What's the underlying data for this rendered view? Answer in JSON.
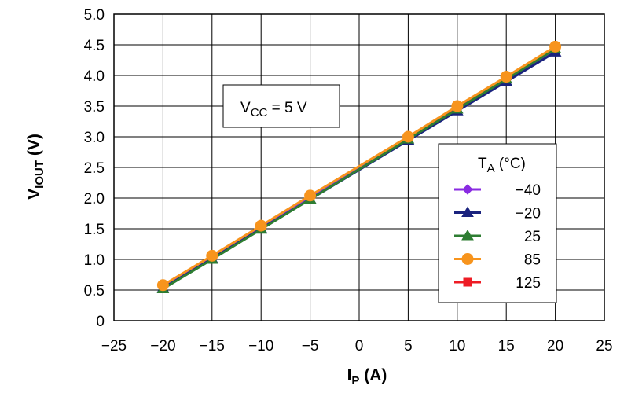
{
  "chart_data": {
    "type": "line",
    "title": "",
    "xlabel": {
      "main": "I",
      "sub": "P",
      "unit": " (A)"
    },
    "ylabel": {
      "main": "V",
      "sub": "IOUT",
      "unit": " (V)"
    },
    "xlim": [
      -25,
      25
    ],
    "ylim": [
      0,
      5
    ],
    "x_ticks": [
      -25,
      -20,
      -15,
      -10,
      -5,
      0,
      5,
      10,
      15,
      20,
      25
    ],
    "x_tick_labels": [
      "−25",
      "−20",
      "−15",
      "−10",
      "−5",
      "0",
      "5",
      "10",
      "15",
      "20",
      "25"
    ],
    "y_ticks": [
      0,
      0.5,
      1,
      1.5,
      2,
      2.5,
      3,
      3.5,
      4,
      4.5,
      5
    ],
    "y_tick_labels": [
      "0",
      "0.5",
      "1.0",
      "1.5",
      "2.0",
      "2.5",
      "3.0",
      "3.5",
      "4.0",
      "4.5",
      "5.0"
    ],
    "grid": true,
    "annotation": {
      "main": "V",
      "sub": "CC",
      "rest": " = 5 V"
    },
    "legend": {
      "title_main": "T",
      "title_sub": "A",
      "title_rest": " (°C)",
      "position": "right-middle"
    },
    "series": [
      {
        "name": "−40",
        "marker": "diamond",
        "color": "#8a2be2",
        "x": [
          -20,
          -15,
          -10,
          -5,
          5,
          10,
          15,
          20
        ],
        "y": [
          0.55,
          1.03,
          1.52,
          2.0,
          2.96,
          3.45,
          3.93,
          4.42
        ]
      },
      {
        "name": "−20",
        "marker": "triangle",
        "color": "#1a237e",
        "x": [
          -20,
          -15,
          -10,
          -5,
          5,
          10,
          15,
          20
        ],
        "y": [
          0.53,
          1.01,
          1.5,
          1.98,
          2.94,
          3.42,
          3.9,
          4.38
        ]
      },
      {
        "name": "25",
        "marker": "triangle",
        "color": "#2e7d32",
        "x": [
          -20,
          -15,
          -10,
          -5,
          5,
          10,
          15,
          20
        ],
        "y": [
          0.52,
          1.0,
          1.49,
          1.98,
          2.96,
          3.45,
          3.94,
          4.43
        ]
      },
      {
        "name": "85",
        "marker": "circle",
        "color": "#f7941d",
        "x": [
          -20,
          -15,
          -10,
          -5,
          5,
          10,
          15,
          20
        ],
        "y": [
          0.58,
          1.06,
          1.55,
          2.04,
          3.0,
          3.5,
          3.98,
          4.47
        ]
      },
      {
        "name": "125",
        "marker": "square",
        "color": "#ee1c25",
        "x": [
          -20,
          -15,
          -10,
          -5,
          5,
          10,
          15,
          20
        ],
        "y": [
          0.57,
          1.05,
          1.54,
          2.03,
          2.99,
          3.49,
          3.97,
          4.46
        ]
      }
    ],
    "draw_order": [
      4,
      0,
      1,
      2,
      3
    ]
  }
}
